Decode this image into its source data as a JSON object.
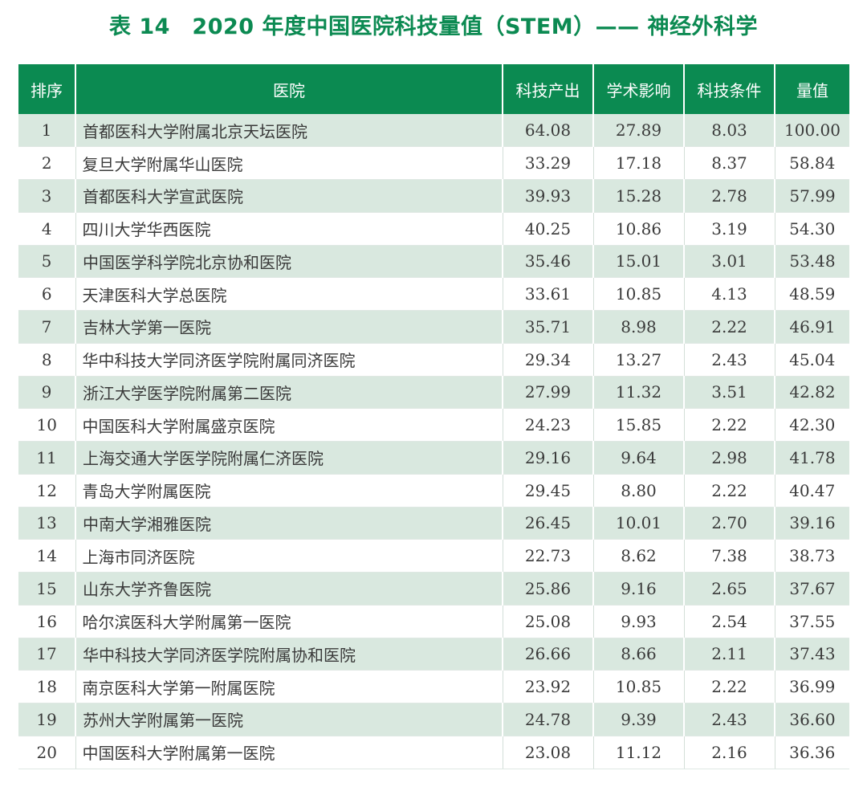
{
  "title": "表 14　2020 年度中国医院科技量值（STEM）—— 神经外科学",
  "headers": [
    "排序",
    "医院",
    "科技产出",
    "学术影响",
    "科技条件",
    "量值"
  ],
  "rows": [
    [
      "1",
      "首都医科大学附属北京天坛医院",
      "64.08",
      "27.89",
      "8.03",
      "100.00"
    ],
    [
      "2",
      "复旦大学附属华山医院",
      "33.29",
      "17.18",
      "8.37",
      "58.84"
    ],
    [
      "3",
      "首都医科大学宣武医院",
      "39.93",
      "15.28",
      "2.78",
      "57.99"
    ],
    [
      "4",
      "四川大学华西医院",
      "40.25",
      "10.86",
      "3.19",
      "54.30"
    ],
    [
      "5",
      "中国医学科学院北京协和医院",
      "35.46",
      "15.01",
      "3.01",
      "53.48"
    ],
    [
      "6",
      "天津医科大学总医院",
      "33.61",
      "10.85",
      "4.13",
      "48.59"
    ],
    [
      "7",
      "吉林大学第一医院",
      "35.71",
      "8.98",
      "2.22",
      "46.91"
    ],
    [
      "8",
      "华中科技大学同济医学院附属同济医院",
      "29.34",
      "13.27",
      "2.43",
      "45.04"
    ],
    [
      "9",
      "浙江大学医学院附属第二医院",
      "27.99",
      "11.32",
      "3.51",
      "42.82"
    ],
    [
      "10",
      "中国医科大学附属盛京医院",
      "24.23",
      "15.85",
      "2.22",
      "42.30"
    ],
    [
      "11",
      "上海交通大学医学院附属仁济医院",
      "29.16",
      "9.64",
      "2.98",
      "41.78"
    ],
    [
      "12",
      "青岛大学附属医院",
      "29.45",
      "8.80",
      "2.22",
      "40.47"
    ],
    [
      "13",
      "中南大学湘雅医院",
      "26.45",
      "10.01",
      "2.70",
      "39.16"
    ],
    [
      "14",
      "上海市同济医院",
      "22.73",
      "8.62",
      "7.38",
      "38.73"
    ],
    [
      "15",
      "山东大学齐鲁医院",
      "25.86",
      "9.16",
      "2.65",
      "37.67"
    ],
    [
      "16",
      "哈尔滨医科大学附属第一医院",
      "25.08",
      "9.93",
      "2.54",
      "37.55"
    ],
    [
      "17",
      "华中科技大学同济医学院附属协和医院",
      "26.66",
      "8.66",
      "2.11",
      "37.43"
    ],
    [
      "18",
      "南京医科大学第一附属医院",
      "23.92",
      "10.85",
      "2.22",
      "36.99"
    ],
    [
      "19",
      "苏州大学附属第一医院",
      "24.78",
      "9.39",
      "2.43",
      "36.60"
    ],
    [
      "20",
      "中国医科大学附属第一医院",
      "23.08",
      "11.12",
      "2.16",
      "36.36"
    ]
  ],
  "colors": {
    "accent": "#0b8a51",
    "header_text": "#ffffff",
    "stripe": "#d9e8df",
    "body_text": "#3a3a3a"
  }
}
